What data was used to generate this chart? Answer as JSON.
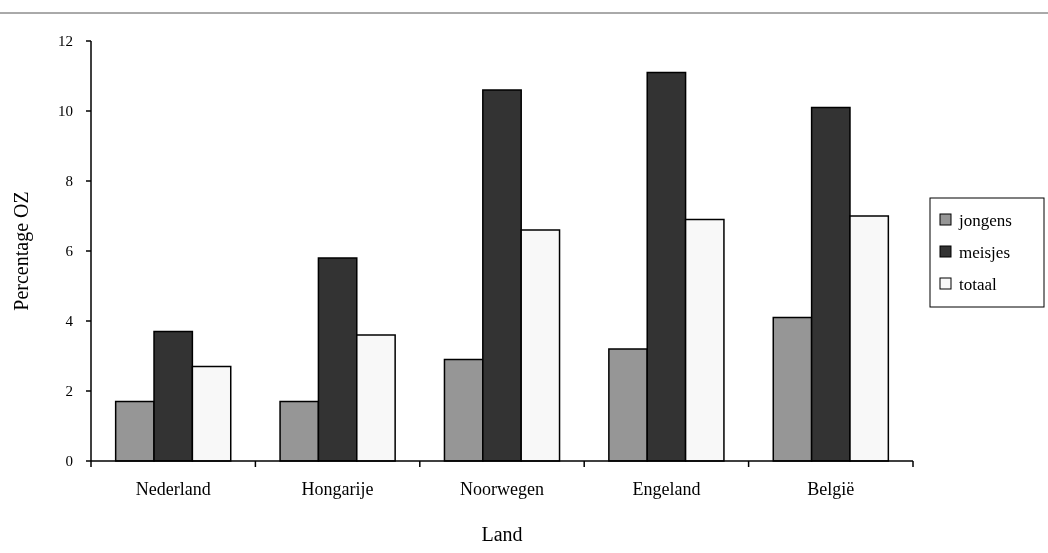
{
  "chart_data": {
    "type": "bar",
    "xlabel": "Land",
    "ylabel": "Percentage OZ",
    "categories": [
      "Nederland",
      "Hongarije",
      "Noorwegen",
      "Engeland",
      "België"
    ],
    "series": [
      {
        "name": "jongens",
        "color": "#969696",
        "values": [
          1.7,
          1.7,
          2.9,
          3.2,
          4.1
        ]
      },
      {
        "name": "meisjes",
        "color": "#333333",
        "values": [
          3.7,
          5.8,
          10.6,
          11.1,
          10.1
        ]
      },
      {
        "name": "totaal",
        "color": "#f8f8f8",
        "values": [
          2.7,
          3.6,
          6.6,
          6.9,
          7.0
        ]
      }
    ],
    "ylim": [
      0,
      12
    ],
    "yticks": [
      0,
      2,
      4,
      6,
      8,
      10,
      12
    ],
    "grid": false,
    "legend": "right"
  }
}
